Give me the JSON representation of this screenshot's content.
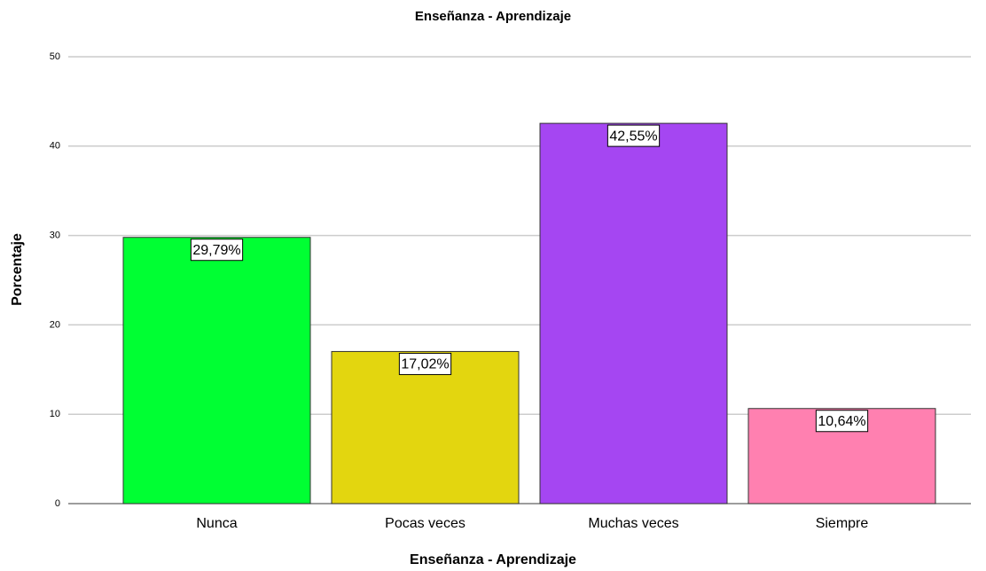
{
  "chart_data": {
    "type": "bar",
    "title": "Enseñanza - Aprendizaje",
    "x_label": "Enseñanza - Aprendizaje",
    "y_label": "Porcentaje",
    "categories": [
      "Nunca",
      "Pocas veces",
      "Muchas veces",
      "Siempre"
    ],
    "values": [
      29.79,
      17.02,
      42.55,
      10.64
    ],
    "value_labels": [
      "29,79%",
      "17,02%",
      "42,55%",
      "10,64%"
    ],
    "colors": [
      "#00ff33",
      "#e3d60f",
      "#a546f2",
      "#ff80b0"
    ],
    "ylim": [
      0,
      50
    ],
    "yticks": [
      0,
      10,
      20,
      30,
      40,
      50
    ],
    "grid": true
  }
}
